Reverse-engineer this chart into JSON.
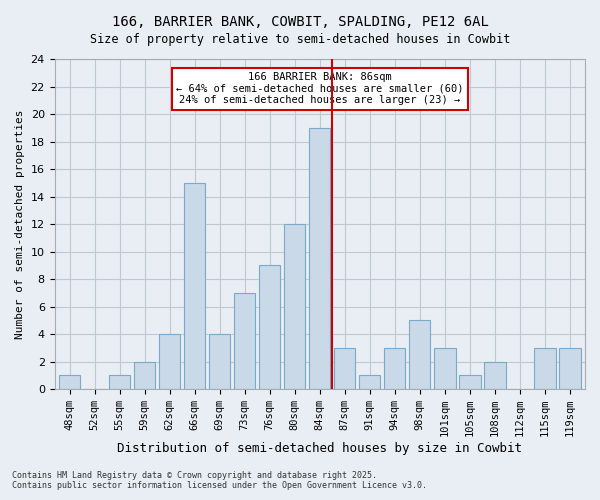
{
  "title1": "166, BARRIER BANK, COWBIT, SPALDING, PE12 6AL",
  "title2": "Size of property relative to semi-detached houses in Cowbit",
  "xlabel": "Distribution of semi-detached houses by size in Cowbit",
  "ylabel": "Number of semi-detached properties",
  "categories": [
    "48sqm",
    "52sqm",
    "55sqm",
    "59sqm",
    "62sqm",
    "66sqm",
    "69sqm",
    "73sqm",
    "76sqm",
    "80sqm",
    "84sqm",
    "87sqm",
    "91sqm",
    "94sqm",
    "98sqm",
    "101sqm",
    "105sqm",
    "108sqm",
    "112sqm",
    "115sqm",
    "119sqm"
  ],
  "values": [
    1,
    0,
    1,
    2,
    4,
    15,
    4,
    7,
    9,
    12,
    19,
    3,
    1,
    3,
    5,
    3,
    1,
    2,
    0,
    3,
    3
  ],
  "bar_color": "#c9d9e8",
  "bar_edge_color": "#7aaac8",
  "highlight_index": 11,
  "vline_x": 11,
  "vline_color": "#cc0000",
  "annotation_text": "166 BARRIER BANK: 86sqm\n← 64% of semi-detached houses are smaller (60)\n24% of semi-detached houses are larger (23) →",
  "annotation_box_color": "#cc0000",
  "ylim": [
    0,
    24
  ],
  "yticks": [
    0,
    2,
    4,
    6,
    8,
    10,
    12,
    14,
    16,
    18,
    20,
    22,
    24
  ],
  "grid_color": "#c0c8d0",
  "background_color": "#e8eef4",
  "footer1": "Contains HM Land Registry data © Crown copyright and database right 2025.",
  "footer2": "Contains public sector information licensed under the Open Government Licence v3.0."
}
